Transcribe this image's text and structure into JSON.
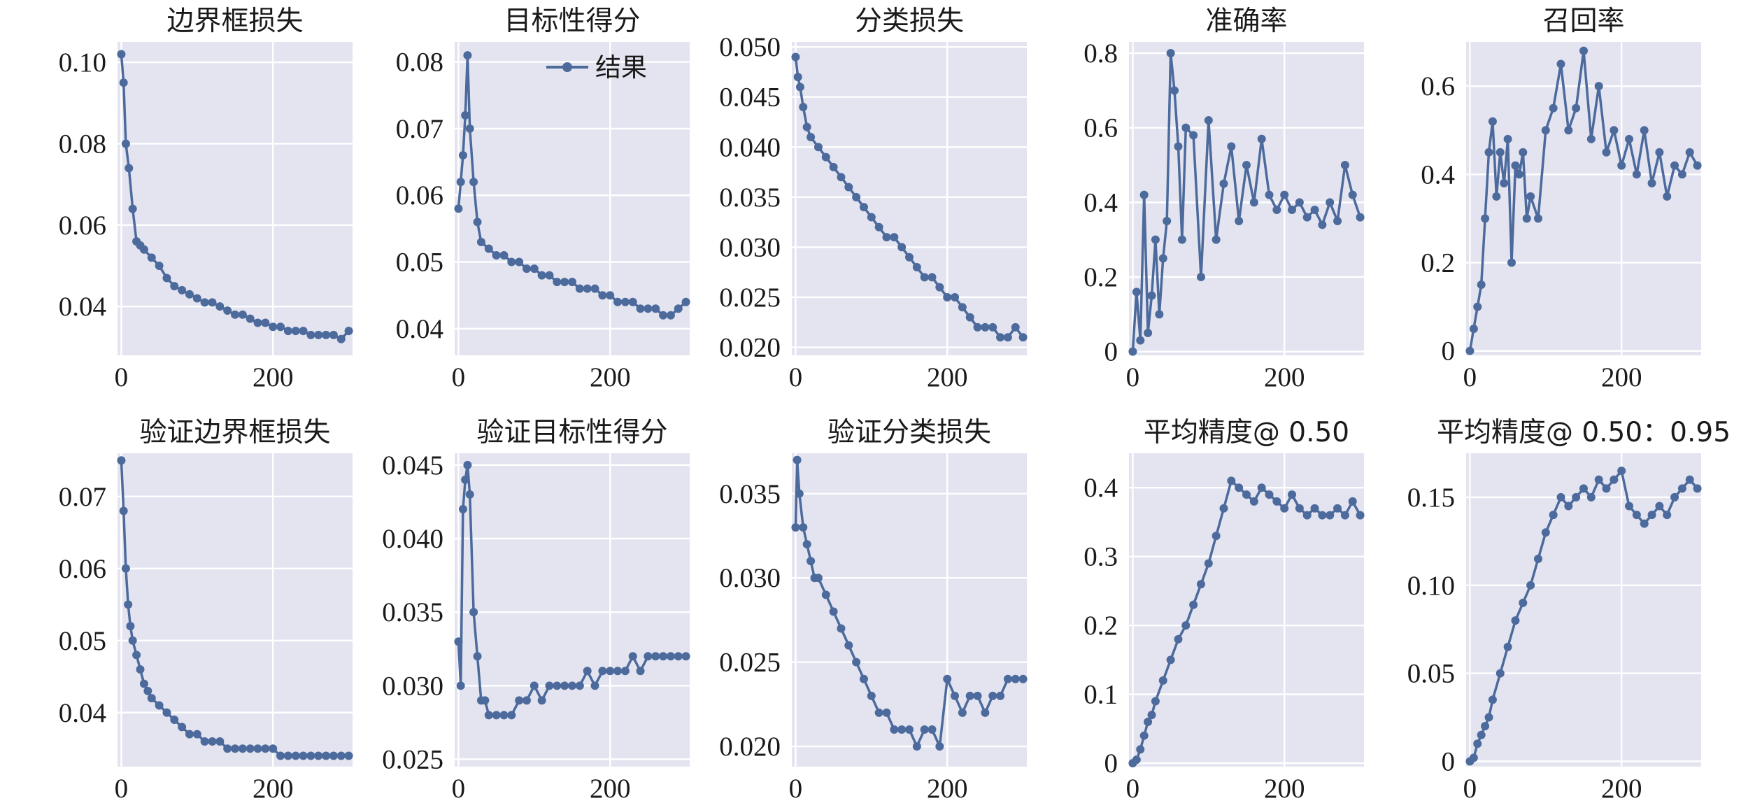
{
  "figure": {
    "line_color": "#4c6a9c",
    "background_color": "#e3e4f0",
    "grid": true
  },
  "chart_data": [
    {
      "type": "line",
      "title": "边界框损失",
      "xlabel": "",
      "ylabel": "",
      "xlim": [
        -5,
        305
      ],
      "ylim": [
        0.028,
        0.105
      ],
      "xticks": [
        0,
        200
      ],
      "xtick_labels": [
        "0",
        "200"
      ],
      "yticks": [
        0.04,
        0.06,
        0.08,
        0.1
      ],
      "ytick_labels": [
        "0.04",
        "0.06",
        "0.08",
        "0.10"
      ],
      "series": [
        {
          "x": [
            0,
            3,
            6,
            10,
            15,
            20,
            25,
            30,
            40,
            50,
            60,
            70,
            80,
            90,
            100,
            110,
            120,
            130,
            140,
            150,
            160,
            170,
            180,
            190,
            200,
            210,
            220,
            230,
            240,
            250,
            260,
            270,
            280,
            290,
            300
          ],
          "y": [
            0.102,
            0.095,
            0.08,
            0.074,
            0.064,
            0.056,
            0.055,
            0.054,
            0.052,
            0.05,
            0.047,
            0.045,
            0.044,
            0.043,
            0.042,
            0.041,
            0.041,
            0.04,
            0.039,
            0.038,
            0.038,
            0.037,
            0.036,
            0.036,
            0.035,
            0.035,
            0.034,
            0.034,
            0.034,
            0.033,
            0.033,
            0.033,
            0.033,
            0.032,
            0.034
          ]
        }
      ]
    },
    {
      "type": "line",
      "title": "目标性得分",
      "xlabel": "",
      "ylabel": "",
      "xlim": [
        -5,
        305
      ],
      "ylim": [
        0.036,
        0.083
      ],
      "xticks": [
        0,
        200
      ],
      "xtick_labels": [
        "0",
        "200"
      ],
      "yticks": [
        0.04,
        0.05,
        0.06,
        0.07,
        0.08
      ],
      "ytick_labels": [
        "0.04",
        "0.05",
        "0.06",
        "0.07",
        "0.08"
      ],
      "legend": [
        "结果"
      ],
      "legend_position": "top-right",
      "series": [
        {
          "name": "结果",
          "x": [
            0,
            3,
            6,
            9,
            12,
            15,
            20,
            25,
            30,
            40,
            50,
            60,
            70,
            80,
            90,
            100,
            110,
            120,
            130,
            140,
            150,
            160,
            170,
            180,
            190,
            200,
            210,
            220,
            230,
            240,
            250,
            260,
            270,
            280,
            290,
            300
          ],
          "y": [
            0.058,
            0.062,
            0.066,
            0.072,
            0.081,
            0.07,
            0.062,
            0.056,
            0.053,
            0.052,
            0.051,
            0.051,
            0.05,
            0.05,
            0.049,
            0.049,
            0.048,
            0.048,
            0.047,
            0.047,
            0.047,
            0.046,
            0.046,
            0.046,
            0.045,
            0.045,
            0.044,
            0.044,
            0.044,
            0.043,
            0.043,
            0.043,
            0.042,
            0.042,
            0.043,
            0.044
          ]
        }
      ]
    },
    {
      "type": "line",
      "title": "分类损失",
      "xlabel": "",
      "ylabel": "",
      "xlim": [
        -5,
        305
      ],
      "ylim": [
        0.0192,
        0.0505
      ],
      "xticks": [
        0,
        200
      ],
      "xtick_labels": [
        "0",
        "200"
      ],
      "yticks": [
        0.02,
        0.025,
        0.03,
        0.035,
        0.04,
        0.045,
        0.05
      ],
      "ytick_labels": [
        "0.020",
        "0.025",
        "0.030",
        "0.035",
        "0.040",
        "0.045",
        "0.050"
      ],
      "series": [
        {
          "x": [
            0,
            3,
            6,
            10,
            15,
            20,
            30,
            40,
            50,
            60,
            70,
            80,
            90,
            100,
            110,
            120,
            130,
            140,
            150,
            160,
            170,
            180,
            190,
            200,
            210,
            220,
            230,
            240,
            250,
            260,
            270,
            280,
            290,
            300
          ],
          "y": [
            0.049,
            0.047,
            0.046,
            0.044,
            0.042,
            0.041,
            0.04,
            0.039,
            0.038,
            0.037,
            0.036,
            0.035,
            0.034,
            0.033,
            0.032,
            0.031,
            0.031,
            0.03,
            0.029,
            0.028,
            0.027,
            0.027,
            0.026,
            0.025,
            0.025,
            0.024,
            0.023,
            0.022,
            0.022,
            0.022,
            0.021,
            0.021,
            0.022,
            0.021
          ]
        }
      ]
    },
    {
      "type": "line",
      "title": "准确率",
      "xlabel": "",
      "ylabel": "",
      "xlim": [
        -5,
        305
      ],
      "ylim": [
        -0.01,
        0.83
      ],
      "xticks": [
        0,
        200
      ],
      "xtick_labels": [
        "0",
        "200"
      ],
      "yticks": [
        0,
        0.2,
        0.4,
        0.6,
        0.8
      ],
      "ytick_labels": [
        "0",
        "0.2",
        "0.4",
        "0.6",
        "0.8"
      ],
      "series": [
        {
          "x": [
            0,
            5,
            10,
            15,
            20,
            25,
            30,
            35,
            40,
            45,
            50,
            55,
            60,
            65,
            70,
            80,
            90,
            100,
            110,
            120,
            130,
            140,
            150,
            160,
            170,
            180,
            190,
            200,
            210,
            220,
            230,
            240,
            250,
            260,
            270,
            280,
            290,
            300
          ],
          "y": [
            0.0,
            0.16,
            0.03,
            0.42,
            0.05,
            0.15,
            0.3,
            0.1,
            0.25,
            0.35,
            0.8,
            0.7,
            0.55,
            0.3,
            0.6,
            0.58,
            0.2,
            0.62,
            0.3,
            0.45,
            0.55,
            0.35,
            0.5,
            0.4,
            0.57,
            0.42,
            0.38,
            0.42,
            0.38,
            0.4,
            0.36,
            0.38,
            0.34,
            0.4,
            0.35,
            0.5,
            0.42,
            0.36
          ]
        }
      ]
    },
    {
      "type": "line",
      "title": "召回率",
      "xlabel": "",
      "ylabel": "",
      "xlim": [
        -5,
        305
      ],
      "ylim": [
        -0.01,
        0.7
      ],
      "xticks": [
        0,
        200
      ],
      "xtick_labels": [
        "0",
        "200"
      ],
      "yticks": [
        0,
        0.2,
        0.4,
        0.6
      ],
      "ytick_labels": [
        "0",
        "0.2",
        "0.4",
        "0.6"
      ],
      "series": [
        {
          "x": [
            0,
            5,
            10,
            15,
            20,
            25,
            30,
            35,
            40,
            45,
            50,
            55,
            60,
            65,
            70,
            75,
            80,
            90,
            100,
            110,
            120,
            130,
            140,
            150,
            160,
            170,
            180,
            190,
            200,
            210,
            220,
            230,
            240,
            250,
            260,
            270,
            280,
            290,
            300
          ],
          "y": [
            0.0,
            0.05,
            0.1,
            0.15,
            0.3,
            0.45,
            0.52,
            0.35,
            0.45,
            0.38,
            0.48,
            0.2,
            0.42,
            0.4,
            0.45,
            0.3,
            0.35,
            0.3,
            0.5,
            0.55,
            0.65,
            0.5,
            0.55,
            0.68,
            0.48,
            0.6,
            0.45,
            0.5,
            0.42,
            0.48,
            0.4,
            0.5,
            0.38,
            0.45,
            0.35,
            0.42,
            0.4,
            0.45,
            0.42
          ]
        }
      ]
    },
    {
      "type": "line",
      "title": "验证边界框损失",
      "xlabel": "",
      "ylabel": "",
      "xlim": [
        -5,
        305
      ],
      "ylim": [
        0.0325,
        0.076
      ],
      "xticks": [
        0,
        200
      ],
      "xtick_labels": [
        "0",
        "200"
      ],
      "yticks": [
        0.04,
        0.05,
        0.06,
        0.07
      ],
      "ytick_labels": [
        "0.04",
        "0.05",
        "0.06",
        "0.07"
      ],
      "series": [
        {
          "x": [
            0,
            3,
            6,
            9,
            12,
            15,
            20,
            25,
            30,
            35,
            40,
            50,
            60,
            70,
            80,
            90,
            100,
            110,
            120,
            130,
            140,
            150,
            160,
            170,
            180,
            190,
            200,
            210,
            220,
            230,
            240,
            250,
            260,
            270,
            280,
            290,
            300
          ],
          "y": [
            0.075,
            0.068,
            0.06,
            0.055,
            0.052,
            0.05,
            0.048,
            0.046,
            0.044,
            0.043,
            0.042,
            0.041,
            0.04,
            0.039,
            0.038,
            0.037,
            0.037,
            0.036,
            0.036,
            0.036,
            0.035,
            0.035,
            0.035,
            0.035,
            0.035,
            0.035,
            0.035,
            0.034,
            0.034,
            0.034,
            0.034,
            0.034,
            0.034,
            0.034,
            0.034,
            0.034,
            0.034
          ]
        }
      ]
    },
    {
      "type": "line",
      "title": "验证目标性得分",
      "xlabel": "",
      "ylabel": "",
      "xlim": [
        -5,
        305
      ],
      "ylim": [
        0.0245,
        0.0458
      ],
      "xticks": [
        0,
        200
      ],
      "xtick_labels": [
        "0",
        "200"
      ],
      "yticks": [
        0.025,
        0.03,
        0.035,
        0.04,
        0.045
      ],
      "ytick_labels": [
        "0.025",
        "0.030",
        "0.035",
        "0.040",
        "0.045"
      ],
      "series": [
        {
          "x": [
            0,
            3,
            6,
            9,
            12,
            15,
            20,
            25,
            30,
            35,
            40,
            50,
            60,
            70,
            80,
            90,
            100,
            110,
            120,
            130,
            140,
            150,
            160,
            170,
            180,
            190,
            200,
            210,
            220,
            230,
            240,
            250,
            260,
            270,
            280,
            290,
            300
          ],
          "y": [
            0.033,
            0.03,
            0.042,
            0.044,
            0.045,
            0.043,
            0.035,
            0.032,
            0.029,
            0.029,
            0.028,
            0.028,
            0.028,
            0.028,
            0.029,
            0.029,
            0.03,
            0.029,
            0.03,
            0.03,
            0.03,
            0.03,
            0.03,
            0.031,
            0.03,
            0.031,
            0.031,
            0.031,
            0.031,
            0.032,
            0.031,
            0.032,
            0.032,
            0.032,
            0.032,
            0.032,
            0.032
          ]
        }
      ]
    },
    {
      "type": "line",
      "title": "验证分类损失",
      "xlabel": "",
      "ylabel": "",
      "xlim": [
        -5,
        305
      ],
      "ylim": [
        0.0188,
        0.0374
      ],
      "xticks": [
        0,
        200
      ],
      "xtick_labels": [
        "0",
        "200"
      ],
      "yticks": [
        0.02,
        0.025,
        0.03,
        0.035
      ],
      "ytick_labels": [
        "0.020",
        "0.025",
        "0.030",
        "0.035"
      ],
      "series": [
        {
          "x": [
            0,
            2,
            5,
            10,
            15,
            20,
            25,
            30,
            40,
            50,
            60,
            70,
            80,
            90,
            100,
            110,
            120,
            130,
            140,
            150,
            160,
            170,
            180,
            190,
            200,
            210,
            220,
            230,
            240,
            250,
            260,
            270,
            280,
            290,
            300
          ],
          "y": [
            0.033,
            0.037,
            0.035,
            0.033,
            0.032,
            0.031,
            0.03,
            0.03,
            0.029,
            0.028,
            0.027,
            0.026,
            0.025,
            0.024,
            0.023,
            0.022,
            0.022,
            0.021,
            0.021,
            0.021,
            0.02,
            0.021,
            0.021,
            0.02,
            0.024,
            0.023,
            0.022,
            0.023,
            0.023,
            0.022,
            0.023,
            0.023,
            0.024,
            0.024,
            0.024
          ]
        }
      ]
    },
    {
      "type": "line",
      "title": "平均精度@ 0.50",
      "xlabel": "",
      "ylabel": "",
      "xlim": [
        -5,
        305
      ],
      "ylim": [
        -0.005,
        0.45
      ],
      "xticks": [
        0,
        200
      ],
      "xtick_labels": [
        "0",
        "200"
      ],
      "yticks": [
        0,
        0.1,
        0.2,
        0.3,
        0.4
      ],
      "ytick_labels": [
        "0",
        "0.1",
        "0.2",
        "0.3",
        "0.4"
      ],
      "series": [
        {
          "x": [
            0,
            5,
            10,
            15,
            20,
            25,
            30,
            40,
            50,
            60,
            70,
            80,
            90,
            100,
            110,
            120,
            130,
            140,
            150,
            160,
            170,
            180,
            190,
            200,
            210,
            220,
            230,
            240,
            250,
            260,
            270,
            280,
            290,
            300
          ],
          "y": [
            0.0,
            0.005,
            0.02,
            0.04,
            0.06,
            0.07,
            0.09,
            0.12,
            0.15,
            0.18,
            0.2,
            0.23,
            0.26,
            0.29,
            0.33,
            0.37,
            0.41,
            0.4,
            0.39,
            0.38,
            0.4,
            0.39,
            0.38,
            0.37,
            0.39,
            0.37,
            0.36,
            0.37,
            0.36,
            0.36,
            0.37,
            0.36,
            0.38,
            0.36
          ]
        }
      ]
    },
    {
      "type": "line",
      "title": "平均精度@ 0.50：0.95",
      "xlabel": "",
      "ylabel": "",
      "xlim": [
        -5,
        305
      ],
      "ylim": [
        -0.003,
        0.175
      ],
      "xticks": [
        0,
        200
      ],
      "xtick_labels": [
        "0",
        "200"
      ],
      "yticks": [
        0,
        0.05,
        0.1,
        0.15
      ],
      "ytick_labels": [
        "0",
        "0.05",
        "0.10",
        "0.15"
      ],
      "series": [
        {
          "x": [
            0,
            5,
            10,
            15,
            20,
            25,
            30,
            40,
            50,
            60,
            70,
            80,
            90,
            100,
            110,
            120,
            130,
            140,
            150,
            160,
            170,
            180,
            190,
            200,
            210,
            220,
            230,
            240,
            250,
            260,
            270,
            280,
            290,
            300
          ],
          "y": [
            0.0,
            0.002,
            0.01,
            0.015,
            0.02,
            0.025,
            0.035,
            0.05,
            0.065,
            0.08,
            0.09,
            0.1,
            0.115,
            0.13,
            0.14,
            0.15,
            0.145,
            0.15,
            0.155,
            0.15,
            0.16,
            0.155,
            0.16,
            0.165,
            0.145,
            0.14,
            0.135,
            0.14,
            0.145,
            0.14,
            0.15,
            0.155,
            0.16,
            0.155
          ]
        }
      ]
    }
  ]
}
